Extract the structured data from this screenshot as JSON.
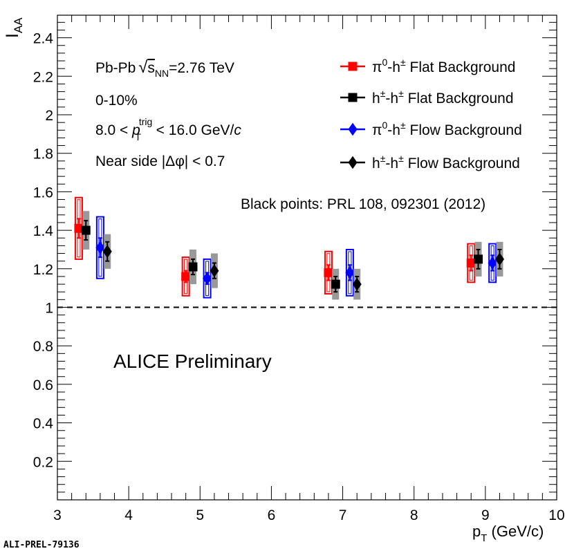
{
  "chart_data": {
    "type": "scatter",
    "title": "",
    "ylabel_main": "I",
    "ylabel_sub": "AA",
    "xlabel_main": "p",
    "xlabel_sub": "T",
    "xlabel_unit": " (GeV/c)",
    "xlim": [
      3,
      10
    ],
    "ylim": [
      0,
      2.5
    ],
    "grid": false,
    "x_ticks": [
      3,
      4,
      5,
      6,
      7,
      8,
      9,
      10
    ],
    "y_ticks": [
      0.2,
      0.4,
      0.6,
      0.8,
      1,
      1.2,
      1.4,
      1.6,
      1.8,
      2,
      2.2,
      2.4
    ],
    "reference_line": {
      "y": 1,
      "style": "dashed"
    },
    "series": [
      {
        "name": "π0-h± Flat Background",
        "color": "#ff0000",
        "marker": "square",
        "syst_style": "open-box",
        "points": [
          {
            "x": 3.3,
            "y": 1.41,
            "stat": 0.05,
            "syst": 0.16
          },
          {
            "x": 4.8,
            "y": 1.16,
            "stat": 0.03,
            "syst": 0.1
          },
          {
            "x": 6.8,
            "y": 1.18,
            "stat": 0.04,
            "syst": 0.11
          },
          {
            "x": 8.8,
            "y": 1.23,
            "stat": 0.04,
            "syst": 0.1
          }
        ]
      },
      {
        "name": "h±-h± Flat Background",
        "color": "#000000",
        "marker": "square",
        "syst_style": "filled-gray",
        "points": [
          {
            "x": 3.4,
            "y": 1.4,
            "stat": 0.05,
            "syst": 0.1
          },
          {
            "x": 4.9,
            "y": 1.21,
            "stat": 0.04,
            "syst": 0.09
          },
          {
            "x": 6.9,
            "y": 1.12,
            "stat": 0.04,
            "syst": 0.08
          },
          {
            "x": 8.9,
            "y": 1.25,
            "stat": 0.05,
            "syst": 0.09
          }
        ]
      },
      {
        "name": "π0-h± Flow Background",
        "color": "#0000ff",
        "marker": "diamond",
        "syst_style": "open-box",
        "points": [
          {
            "x": 3.6,
            "y": 1.31,
            "stat": 0.05,
            "syst": 0.16
          },
          {
            "x": 5.1,
            "y": 1.15,
            "stat": 0.03,
            "syst": 0.1
          },
          {
            "x": 7.1,
            "y": 1.18,
            "stat": 0.04,
            "syst": 0.12
          },
          {
            "x": 9.1,
            "y": 1.23,
            "stat": 0.04,
            "syst": 0.1
          }
        ]
      },
      {
        "name": "h±-h± Flow Background",
        "color": "#000000",
        "marker": "diamond",
        "syst_style": "filled-gray",
        "points": [
          {
            "x": 3.7,
            "y": 1.29,
            "stat": 0.05,
            "syst": 0.09
          },
          {
            "x": 5.2,
            "y": 1.19,
            "stat": 0.04,
            "syst": 0.09
          },
          {
            "x": 7.2,
            "y": 1.12,
            "stat": 0.04,
            "syst": 0.08
          },
          {
            "x": 9.2,
            "y": 1.25,
            "stat": 0.05,
            "syst": 0.09
          }
        ]
      }
    ],
    "legend": {
      "placement": "top-right",
      "entries": [
        {
          "p1": "π",
          "sup1": "0",
          "mid": "-h",
          "sup2": "±",
          "rest": " Flat Background"
        },
        {
          "p1": "h",
          "sup1": "±",
          "mid": "-h",
          "sup2": "±",
          "rest": " Flat Background"
        },
        {
          "p1": "π",
          "sup1": "0",
          "mid": "-h",
          "sup2": "±",
          "rest": " Flow Background"
        },
        {
          "p1": "h",
          "sup1": "±",
          "mid": "-h",
          "sup2": "±",
          "rest": " Flow Background"
        }
      ]
    },
    "annotations": {
      "system_prefix": "Pb-Pb ",
      "energy_sub": "NN",
      "energy_rest": "=2.76 TeV",
      "centrality": "0-10%",
      "trig_lo": "8.0 < ",
      "trig_p": "p",
      "trig_sup": "trig",
      "trig_sub": "T",
      "trig_hi": " < 16.0 GeV/",
      "trig_unit_c": "c",
      "near_side": "Near side |Δφ| < 0.7",
      "reference": "Black points: PRL 108, 092301 (2012)",
      "preliminary": "ALICE Preliminary",
      "figure_id": "ALI-PREL-79136"
    }
  }
}
